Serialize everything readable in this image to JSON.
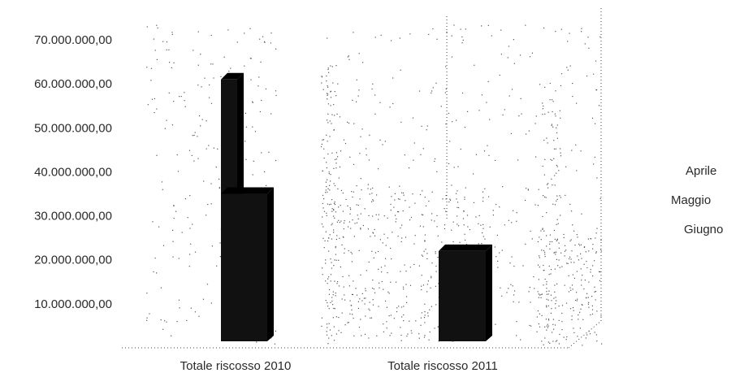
{
  "chart_data": {
    "type": "bar",
    "categories": [
      "Totale riscosso 2010",
      "Totale riscosso 2011"
    ],
    "series": [
      {
        "name": "Aprile",
        "values": [
          0,
          0
        ]
      },
      {
        "name": "Maggio",
        "values": [
          61000000,
          0
        ]
      },
      {
        "name": "Giugno",
        "values": [
          35000000,
          22000000
        ]
      }
    ],
    "y_ticks": [
      "10.000.000,00",
      "20.000.000,00",
      "30.000.000,00",
      "40.000.000,00",
      "50.000.000,00",
      "60.000.000,00",
      "70.000.000,00"
    ],
    "ylim": [
      0,
      75000000
    ],
    "legend_position": "right",
    "colors": {
      "bar": "#111111",
      "noise": "#555555"
    }
  }
}
